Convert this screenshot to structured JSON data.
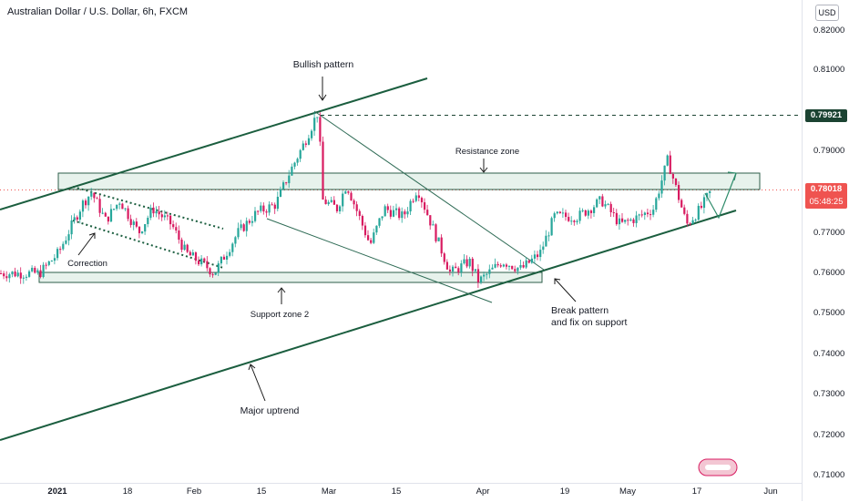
{
  "header": {
    "title": "Australian Dollar / U.S. Dollar, 6h, FXCM"
  },
  "price_scale": {
    "currency": "USD",
    "ticks": [
      "0.82000",
      "0.81000",
      "0.79921",
      "0.79000",
      "0.78000",
      "0.77000",
      "0.76000",
      "0.75000",
      "0.74000",
      "0.73000",
      "0.72000",
      "0.71000"
    ],
    "last_price": "0.78018",
    "countdown": "05:48:25",
    "level_badge": "0.79921"
  },
  "time_axis": {
    "labels": [
      "2021",
      "18",
      "Feb",
      "15",
      "Mar",
      "15",
      "Apr",
      "19",
      "May",
      "17",
      "Jun"
    ]
  },
  "annotations": {
    "bullish_pattern": "Bullish pattern",
    "resistance_zone": "Resistance zone",
    "correction": "Correction",
    "support_zone": "Support zone 2",
    "break_line1": "Break pattern",
    "break_line2": "and fix on support",
    "major_uptrend": "Major uptrend"
  },
  "colors": {
    "up": "#26a69a",
    "down": "#d81b60",
    "annotation": "#1b5e3f",
    "zone_fill": "#dfeee6",
    "last_price": "#ef5350",
    "level": "#1b4332"
  },
  "chart_data": {
    "type": "candlestick",
    "symbol": "AUDUSD",
    "timeframe": "6h",
    "ylim": [
      0.705,
      0.826
    ],
    "y_ticks": [
      0.82,
      0.81,
      0.79,
      0.78,
      0.77,
      0.76,
      0.75,
      0.74,
      0.73,
      0.72,
      0.71
    ],
    "x_ticks": [
      "2021",
      "18",
      "Feb",
      "15",
      "Mar",
      "15",
      "Apr",
      "19",
      "May",
      "17",
      "Jun"
    ],
    "last_price": 0.78018,
    "horizontal_level": 0.79921,
    "close_path": [
      {
        "date": "2020-12-28",
        "close": 0.76
      },
      {
        "date": "2021-01-01",
        "close": 0.765
      },
      {
        "date": "2021-01-06",
        "close": 0.777
      },
      {
        "date": "2021-01-08",
        "close": 0.78
      },
      {
        "date": "2021-01-11",
        "close": 0.773
      },
      {
        "date": "2021-01-14",
        "close": 0.778
      },
      {
        "date": "2021-01-18",
        "close": 0.77
      },
      {
        "date": "2021-01-21",
        "close": 0.776
      },
      {
        "date": "2021-01-25",
        "close": 0.772
      },
      {
        "date": "2021-01-28",
        "close": 0.765
      },
      {
        "date": "2021-02-01",
        "close": 0.762
      },
      {
        "date": "2021-02-03",
        "close": 0.76
      },
      {
        "date": "2021-02-08",
        "close": 0.77
      },
      {
        "date": "2021-02-12",
        "close": 0.775
      },
      {
        "date": "2021-02-16",
        "close": 0.777
      },
      {
        "date": "2021-02-19",
        "close": 0.785
      },
      {
        "date": "2021-02-22",
        "close": 0.792
      },
      {
        "date": "2021-02-25",
        "close": 0.8
      },
      {
        "date": "2021-02-26",
        "close": 0.778
      },
      {
        "date": "2021-03-01",
        "close": 0.776
      },
      {
        "date": "2021-03-03",
        "close": 0.782
      },
      {
        "date": "2021-03-08",
        "close": 0.767
      },
      {
        "date": "2021-03-11",
        "close": 0.776
      },
      {
        "date": "2021-03-15",
        "close": 0.774
      },
      {
        "date": "2021-03-18",
        "close": 0.781
      },
      {
        "date": "2021-03-22",
        "close": 0.769
      },
      {
        "date": "2021-03-25",
        "close": 0.76
      },
      {
        "date": "2021-03-29",
        "close": 0.763
      },
      {
        "date": "2021-03-31",
        "close": 0.758
      },
      {
        "date": "2021-04-05",
        "close": 0.763
      },
      {
        "date": "2021-04-09",
        "close": 0.761
      },
      {
        "date": "2021-04-13",
        "close": 0.765
      },
      {
        "date": "2021-04-16",
        "close": 0.774
      },
      {
        "date": "2021-04-21",
        "close": 0.774
      },
      {
        "date": "2021-04-26",
        "close": 0.778
      },
      {
        "date": "2021-04-30",
        "close": 0.772
      },
      {
        "date": "2021-05-04",
        "close": 0.774
      },
      {
        "date": "2021-05-07",
        "close": 0.776
      },
      {
        "date": "2021-05-10",
        "close": 0.788
      },
      {
        "date": "2021-05-12",
        "close": 0.78
      },
      {
        "date": "2021-05-14",
        "close": 0.772
      },
      {
        "date": "2021-05-17",
        "close": 0.776
      },
      {
        "date": "2021-05-19",
        "close": 0.78
      }
    ],
    "drawings": {
      "resistance_zone": [
        0.78,
        0.7844
      ],
      "support_zone": [
        0.7577,
        0.759
      ]
    }
  }
}
